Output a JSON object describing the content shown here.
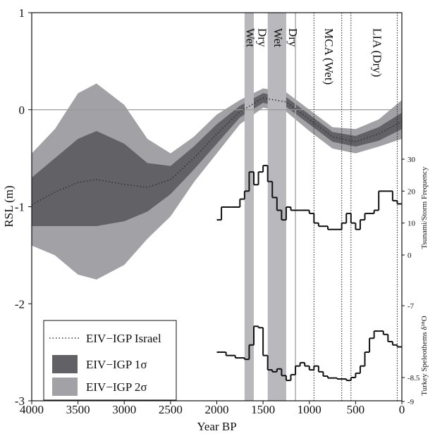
{
  "chart_data": {
    "type": "line",
    "x_label": "Year BP",
    "y_label": "RSL (m)",
    "xlim": [
      4000,
      0
    ],
    "xticks": [
      4000,
      3500,
      3000,
      2500,
      2000,
      1500,
      1000,
      500,
      0
    ],
    "ylim": [
      -3,
      1
    ],
    "yticks": [
      1,
      0,
      -1,
      -2,
      -3
    ],
    "hline": 0,
    "legend": "lower left",
    "bands": [
      {
        "name": "EIV−IGP 2σ",
        "color": "#a2a2a6",
        "x": [
          4000,
          3750,
          3500,
          3300,
          3000,
          2750,
          2500,
          2250,
          2000,
          1750,
          1500,
          1250,
          1000,
          750,
          500,
          250,
          0
        ],
        "upper": [
          -0.45,
          -0.2,
          0.17,
          0.27,
          0.05,
          -0.3,
          -0.45,
          -0.28,
          -0.05,
          0.1,
          0.22,
          0.18,
          0.0,
          -0.18,
          -0.2,
          -0.1,
          0.1
        ],
        "lower": [
          -1.4,
          -1.5,
          -1.7,
          -1.75,
          -1.6,
          -1.33,
          -1.1,
          -0.75,
          -0.45,
          -0.15,
          0.02,
          -0.02,
          -0.22,
          -0.4,
          -0.45,
          -0.38,
          -0.3
        ]
      },
      {
        "name": "EIV−IGP 1σ",
        "color": "#626266",
        "x": [
          4000,
          3750,
          3500,
          3300,
          3000,
          2750,
          2500,
          2250,
          2000,
          1750,
          1500,
          1250,
          1000,
          750,
          500,
          250,
          0
        ],
        "upper": [
          -0.7,
          -0.5,
          -0.3,
          -0.22,
          -0.35,
          -0.55,
          -0.58,
          -0.38,
          -0.15,
          0.04,
          0.17,
          0.13,
          -0.05,
          -0.23,
          -0.27,
          -0.18,
          -0.03
        ],
        "lower": [
          -1.2,
          -1.2,
          -1.2,
          -1.2,
          -1.15,
          -1.05,
          -0.87,
          -0.62,
          -0.35,
          -0.08,
          0.07,
          0.03,
          -0.15,
          -0.33,
          -0.38,
          -0.32,
          -0.2
        ]
      }
    ],
    "series": [
      {
        "name": "EIV−IGP Israel",
        "color": "#333333",
        "style": "dotted",
        "x": [
          4000,
          3750,
          3500,
          3300,
          3000,
          2750,
          2500,
          2250,
          2000,
          1750,
          1500,
          1250,
          1000,
          750,
          500,
          250,
          0
        ],
        "values": [
          -0.98,
          -0.85,
          -0.75,
          -0.72,
          -0.77,
          -0.8,
          -0.72,
          -0.5,
          -0.25,
          -0.02,
          0.12,
          0.08,
          -0.1,
          -0.28,
          -0.33,
          -0.25,
          -0.12
        ]
      }
    ],
    "y2_label": "Tsunami/Storm Frequency",
    "y2lim": [
      0,
      30
    ],
    "y2ticks": [
      0,
      10,
      20,
      30
    ],
    "y2_series": {
      "color": "#111111",
      "edges": [
        2000,
        1950,
        1850,
        1750,
        1700,
        1650,
        1600,
        1550,
        1500,
        1450,
        1400,
        1350,
        1300,
        1250,
        1200,
        1100,
        1000,
        950,
        900,
        800,
        650,
        600,
        550,
        500,
        450,
        400,
        300,
        250,
        100,
        50,
        0
      ],
      "values": [
        11,
        15,
        15,
        17.5,
        20,
        26,
        22,
        26,
        28,
        23,
        18,
        14,
        11,
        15,
        14,
        14,
        13,
        10,
        9,
        8,
        10,
        13,
        10,
        8,
        11,
        13,
        14,
        20,
        17,
        16
      ]
    },
    "y3_label": "Turkey Speleothems δ¹⁸O",
    "y3lim": [
      -9,
      -7
    ],
    "y3ticks": [
      -7,
      -8.5,
      -9
    ],
    "y3_series": {
      "color": "#111111",
      "edges": [
        2000,
        1900,
        1800,
        1700,
        1650,
        1600,
        1550,
        1500,
        1450,
        1400,
        1350,
        1300,
        1250,
        1200,
        1150,
        1100,
        1050,
        1000,
        950,
        900,
        850,
        800,
        700,
        600,
        550,
        500,
        450,
        400,
        350,
        300,
        250,
        200,
        150,
        100,
        50,
        0
      ],
      "values": [
        -7.97,
        -8.04,
        -8.09,
        -8.12,
        -7.82,
        -7.43,
        -7.46,
        -8.04,
        -8.34,
        -8.38,
        -8.32,
        -8.46,
        -8.56,
        -8.44,
        -8.26,
        -8.19,
        -8.26,
        -8.34,
        -8.26,
        -8.38,
        -8.47,
        -8.51,
        -8.53,
        -8.56,
        -8.5,
        -8.41,
        -8.26,
        -7.97,
        -7.68,
        -7.53,
        -7.53,
        -7.6,
        -7.75,
        -7.82,
        -7.86
      ]
    },
    "shaded_periods": [
      {
        "start": 1700,
        "end": 1600,
        "color": "#b9b9bd"
      },
      {
        "start": 1450,
        "end": 1250,
        "color": "#b9b9bd"
      }
    ],
    "boundaries": [
      {
        "x": 1150,
        "style": "solid"
      },
      {
        "x": 950,
        "style": "dotted"
      },
      {
        "x": 650,
        "style": "dotted"
      },
      {
        "x": 550,
        "style": "dotted"
      },
      {
        "x": 50,
        "style": "dotted"
      }
    ],
    "annotations": [
      {
        "text": "Wet",
        "x": 1650
      },
      {
        "text": "Dry",
        "x": 1520
      },
      {
        "text": "Wet",
        "x": 1350
      },
      {
        "text": "Dry",
        "x": 1190
      },
      {
        "text": "MCA (Wet)",
        "x": 800
      },
      {
        "text": "LIA (Dry)",
        "x": 280
      }
    ]
  }
}
